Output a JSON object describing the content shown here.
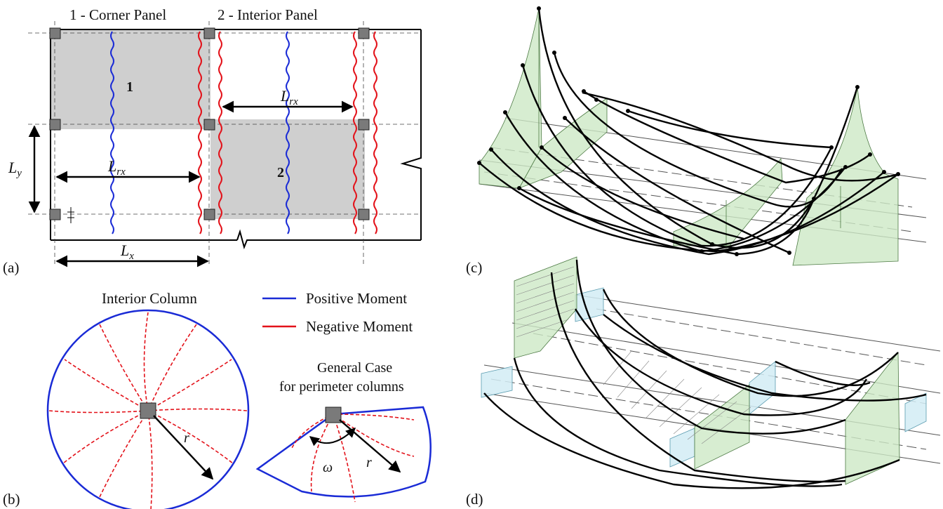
{
  "panel_a": {
    "label": "(a)",
    "title_corner": "1 - Corner Panel",
    "title_interior": "2 - Interior Panel",
    "panel1_number": "1",
    "panel2_number": "2",
    "dim_lrx_top": {
      "main": "L",
      "sub": "rx"
    },
    "dim_lrx_left": {
      "main": "L",
      "sub": "rx"
    },
    "dim_ly": {
      "main": "L",
      "sub": "y"
    },
    "dim_lx": {
      "main": "L",
      "sub": "x"
    }
  },
  "panel_b": {
    "label": "(b)",
    "interior_title": "Interior Column",
    "general_title_line1": "General Case",
    "general_title_line2": "for perimeter columns",
    "radius_symbol": "r",
    "angle_symbol": "ω"
  },
  "legend": {
    "positive": {
      "label": "Positive Moment",
      "color": "#1a2bd6"
    },
    "negative": {
      "label": "Negative Moment",
      "color": "#e3121a"
    }
  },
  "panel_c": {
    "label": "(c)"
  },
  "panel_d": {
    "label": "(d)"
  },
  "colors": {
    "slab_shade": "#cfcfcf",
    "column_fill": "#7a7a7a",
    "green_fill": "#cde8c6",
    "blue_fill": "#d2ecf4"
  }
}
